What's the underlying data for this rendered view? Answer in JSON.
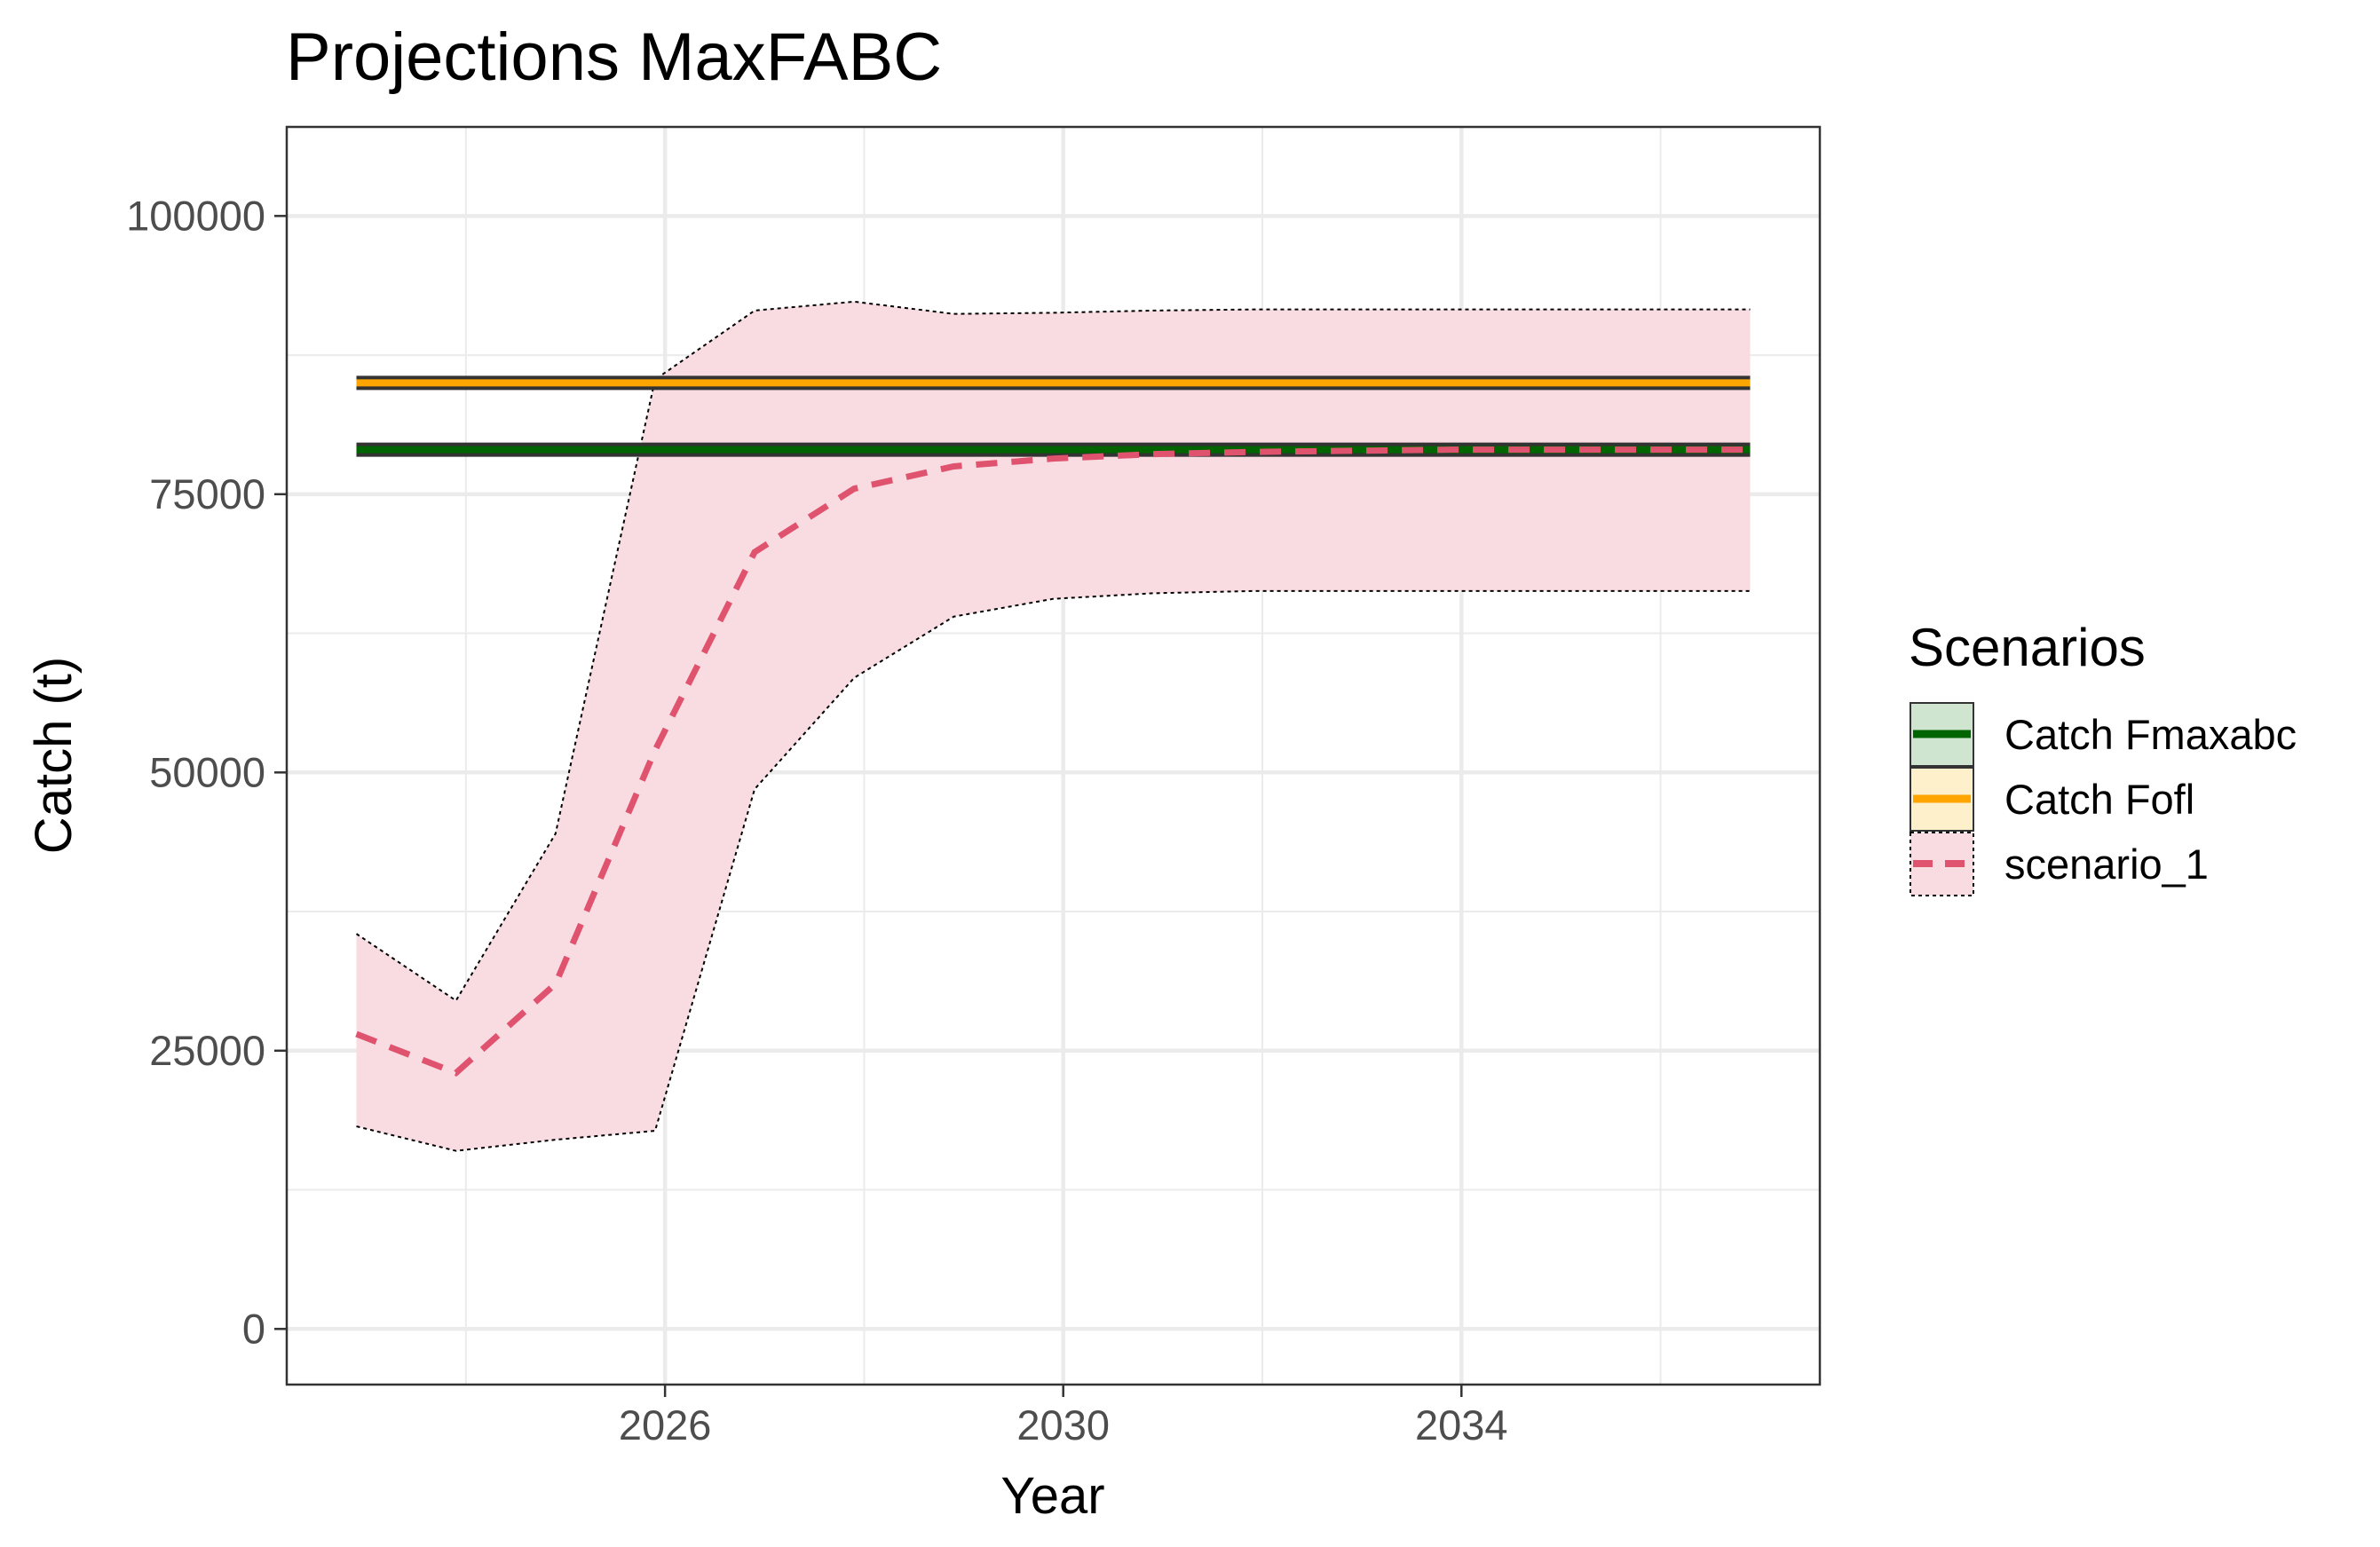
{
  "chart_data": {
    "type": "line",
    "title": "Projections MaxFABC",
    "xlabel": "Year",
    "ylabel": "Catch (t)",
    "xlim": [
      2022.2,
      2037.6
    ],
    "ylim": [
      -5000,
      108000
    ],
    "x_ticks": [
      2026,
      2030,
      2034
    ],
    "y_ticks": [
      0,
      25000,
      50000,
      75000,
      100000
    ],
    "y_tick_labels": [
      "0",
      "25000",
      "50000",
      "75000",
      "100000"
    ],
    "x_tick_labels": [
      "2026",
      "2030",
      "2034"
    ],
    "grid": true,
    "legend": {
      "title": "Scenarios",
      "position": "right",
      "entries": [
        "Catch Fmaxabc",
        "Catch Fofl",
        "scenario_1"
      ]
    },
    "reference_lines": [
      {
        "name": "Catch Fmaxabc",
        "y": 79000,
        "x_start": 2022.9,
        "x_end": 2036.9,
        "color": "#006400",
        "fill": "#cfe5cf"
      },
      {
        "name": "Catch Fofl",
        "y": 85000,
        "x_start": 2022.9,
        "x_end": 2036.9,
        "color": "#ffa500",
        "fill": "#fff0cc"
      }
    ],
    "series": [
      {
        "name": "scenario_1",
        "color": "#e0536f",
        "band_fill": "#f9dce1",
        "x": [
          2022.9,
          2023.9,
          2024.9,
          2025.9,
          2026.9,
          2027.9,
          2028.9,
          2029.9,
          2030.9,
          2031.9,
          2032.9,
          2033.9,
          2034.9,
          2035.9,
          2036.9
        ],
        "values": [
          26500,
          23000,
          31000,
          52000,
          69800,
          75500,
          77500,
          78200,
          78600,
          78800,
          78900,
          79000,
          79000,
          79000,
          79000
        ],
        "upper": [
          35500,
          29500,
          44500,
          85300,
          91500,
          92300,
          91200,
          91300,
          91500,
          91600,
          91600,
          91600,
          91600,
          91600,
          91600
        ],
        "lower": [
          18200,
          16000,
          17000,
          17800,
          48500,
          58500,
          64000,
          65600,
          66100,
          66300,
          66300,
          66300,
          66300,
          66300,
          66300
        ]
      }
    ]
  }
}
